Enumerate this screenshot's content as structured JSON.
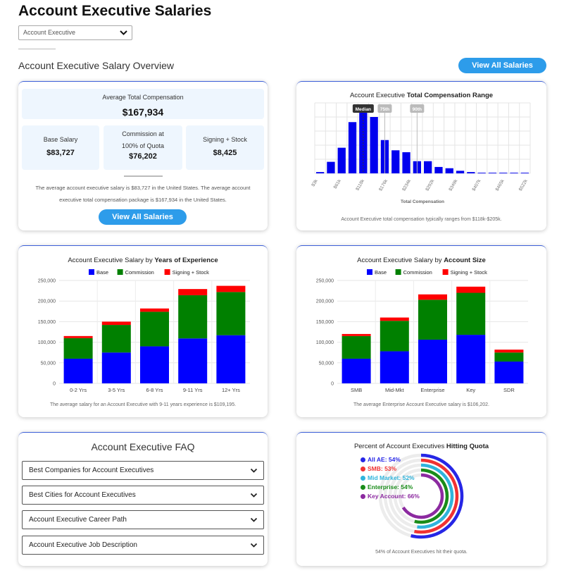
{
  "page": {
    "title": "Account Executive Salaries"
  },
  "role_select": {
    "value": "Account Executive"
  },
  "overview": {
    "title": "Account Executive Salary Overview",
    "view_all_label": "View All Salaries"
  },
  "compensation": {
    "avg_label": "Average Total Compensation",
    "avg_value": "$167,934",
    "base_label": "Base Salary",
    "base_value": "$83,727",
    "commission_label": "Commission at 100% of Quota",
    "commission_value": "$76,202",
    "signing_label": "Signing + Stock",
    "signing_value": "$8,425",
    "description": "The average account executive salary is $83,727 in the United States. The average account executive total compensation package is $167,934 in the United States.",
    "button_label": "View All Salaries"
  },
  "range_chart": {
    "title_prefix": "Account Executive ",
    "title_bold": "Total Compensation Range",
    "xlabel": "Total Compensation",
    "note": "Account Executive total compensation typically ranges from $118k-$205k.",
    "markers": {
      "median": "Median",
      "p75": "75th",
      "p90": "90th"
    },
    "colors": {
      "bar": "#0000ee",
      "grid": "#e4e4e4"
    }
  },
  "experience_chart": {
    "title_prefix": "Account Executive Salary by ",
    "title_bold": "Years of Experience",
    "note": "The average salary for an Account Executive with 9-11 years experience is $109,195."
  },
  "size_chart": {
    "title_prefix": "Account Executive Salary by ",
    "title_bold": "Account Size",
    "note": "The average Enterprise Account Executive salary is $106,202."
  },
  "faq": {
    "title": "Account Executive FAQ",
    "items": [
      "Best Companies for Account Executives",
      "Best Cities for Account Executives",
      "Account Executive Career Path",
      "Account Executive Job Description"
    ]
  },
  "quota": {
    "title_prefix": "Percent of Account Executives ",
    "title_bold": "Hitting Quota",
    "note": "54% of Account Executives hit their quota.",
    "items": [
      {
        "label": "All AE: 54%",
        "value": 54,
        "color": "#2626e6"
      },
      {
        "label": "SMB: 53%",
        "value": 53,
        "color": "#f03232"
      },
      {
        "label": "Mid Market: 52%",
        "value": 52,
        "color": "#2fb4dc"
      },
      {
        "label": "Enterprise: 54%",
        "value": 54,
        "color": "#198c19"
      },
      {
        "label": "Key Account: 66%",
        "value": 66,
        "color": "#8c2aa0"
      }
    ]
  },
  "chart_data": [
    {
      "type": "bar",
      "title": "Account Executive Total Compensation Range",
      "xlabel": "Total Compensation",
      "tick_labels": [
        "$3k",
        "$61k",
        "$118k",
        "$176k",
        "$234k",
        "$292k",
        "$349k",
        "$407k",
        "$465k",
        "$522k"
      ],
      "values": [
        2,
        18,
        40,
        80,
        100,
        88,
        52,
        36,
        33,
        19,
        19,
        10,
        8,
        4,
        2,
        1,
        1,
        1,
        1,
        1
      ],
      "ylim": [
        0,
        110
      ]
    },
    {
      "type": "bar",
      "title": "Account Executive Salary by Years of Experience",
      "categories": [
        "0-2 Yrs",
        "3-5 Yrs",
        "6-8 Yrs",
        "9-11 Yrs",
        "12+ Yrs"
      ],
      "series": [
        {
          "name": "Base",
          "color": "#0000ff",
          "values": [
            60000,
            75000,
            90000,
            109195,
            117000
          ]
        },
        {
          "name": "Commission",
          "color": "#008000",
          "values": [
            50000,
            67000,
            84000,
            105000,
            105000
          ]
        },
        {
          "name": "Signing + Stock",
          "color": "#ff0000",
          "values": [
            5000,
            8000,
            8000,
            15000,
            15000
          ]
        }
      ],
      "yticks": [
        "0",
        "50,000",
        "100,000",
        "150,000",
        "200,000",
        "250,000"
      ],
      "ylim": [
        0,
        250000
      ]
    },
    {
      "type": "bar",
      "title": "Account Executive Salary by Account Size",
      "categories": [
        "SMB",
        "Mid-Mkt",
        "Enterprise",
        "Key",
        "SDR"
      ],
      "series": [
        {
          "name": "Base",
          "color": "#0000ff",
          "values": [
            60000,
            78000,
            106202,
            118000,
            53000
          ]
        },
        {
          "name": "Commission",
          "color": "#008000",
          "values": [
            55000,
            74000,
            97000,
            102000,
            22000
          ]
        },
        {
          "name": "Signing + Stock",
          "color": "#ff0000",
          "values": [
            5000,
            8000,
            13000,
            15000,
            7000
          ]
        }
      ],
      "yticks": [
        "0",
        "50,000",
        "100,000",
        "150,000",
        "200,000",
        "250,000"
      ],
      "ylim": [
        0,
        250000
      ]
    }
  ]
}
